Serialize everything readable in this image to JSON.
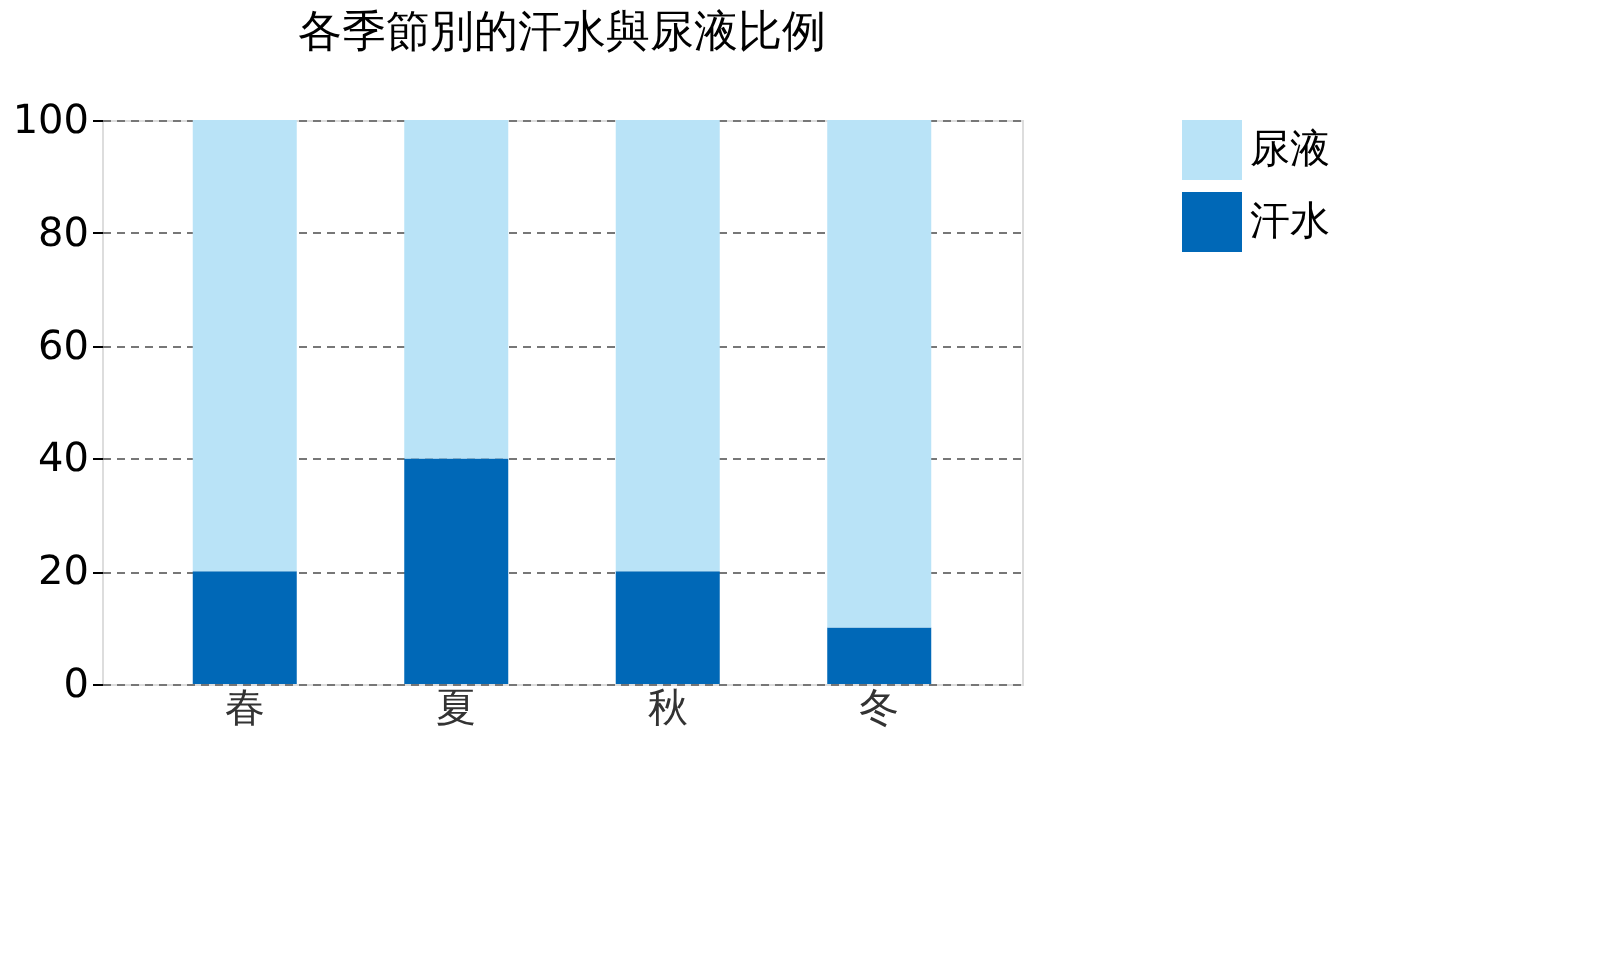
{
  "chart_data": {
    "type": "bar",
    "title": "各季節別的汗水與尿液比例",
    "categories": [
      "春",
      "夏",
      "秋",
      "冬"
    ],
    "series": [
      {
        "name": "汗水",
        "color": "#0068b7",
        "values": [
          20,
          40,
          20,
          10
        ]
      },
      {
        "name": "尿液",
        "color": "#b9e3f7",
        "values": [
          80,
          60,
          80,
          90
        ]
      }
    ],
    "stacked": true,
    "ylim": [
      0,
      100
    ],
    "yticks": [
      0,
      20,
      40,
      60,
      80,
      100
    ],
    "grid": "y",
    "legend": "top right"
  }
}
